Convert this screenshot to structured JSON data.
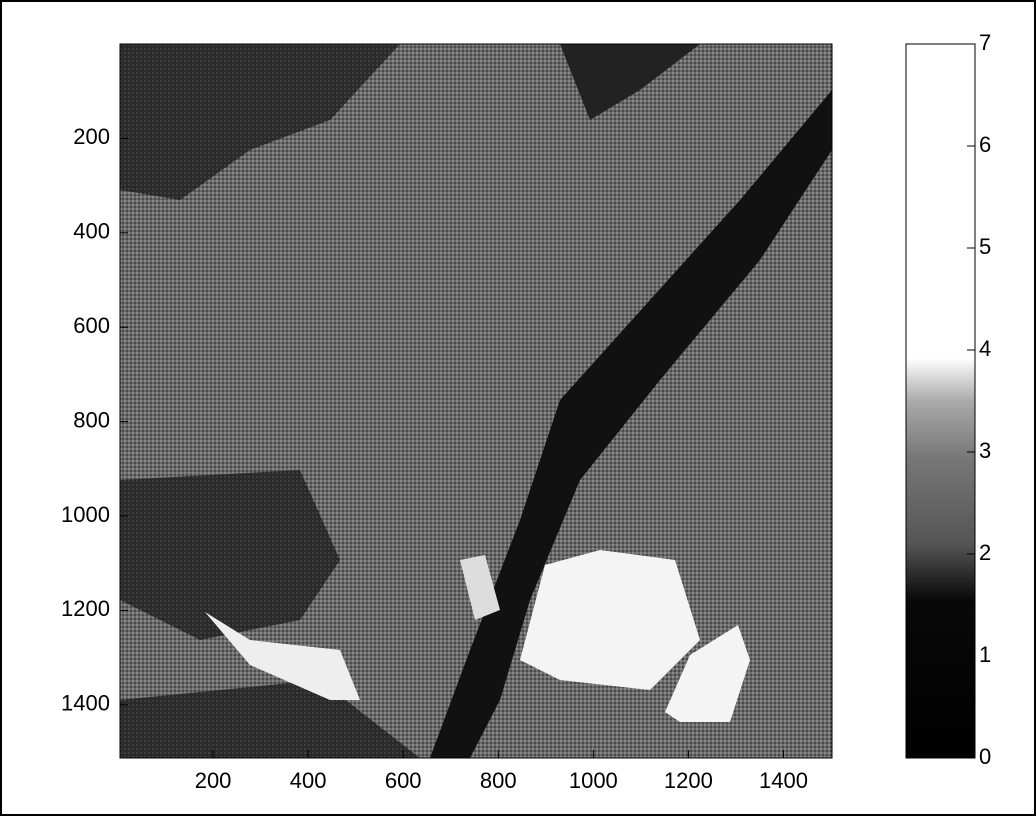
{
  "chart_data": {
    "type": "image",
    "xlim": [
      0,
      1500
    ],
    "xticks": [
      200,
      400,
      600,
      800,
      1000,
      1200,
      1400
    ],
    "ylim": [
      0,
      1500
    ],
    "yticks": [
      200,
      400,
      600,
      800,
      1000,
      1200,
      1400
    ],
    "colorbar": {
      "lim": [
        0,
        7
      ],
      "ticks": [
        0,
        1,
        2,
        3,
        4,
        5,
        6,
        7
      ]
    }
  }
}
